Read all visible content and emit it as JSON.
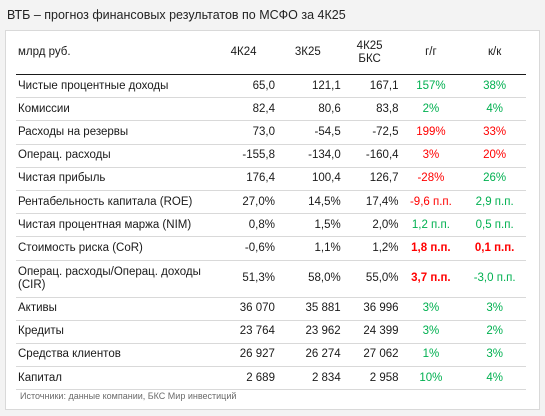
{
  "title": "ВТБ – прогноз финансовых результатов по МСФО за 4К25",
  "columns": [
    "млрд руб.",
    "4К24",
    "3К25",
    "4К25\nБКС",
    "г/г",
    "к/к"
  ],
  "colors": {
    "red": "#ff0000",
    "green": "#00b050",
    "darkred": "#ff0000"
  },
  "rows": [
    {
      "label": "Чистые процентные доходы",
      "v1": "65,0",
      "v2": "121,1",
      "v3": "167,1",
      "yoy": "157%",
      "qoq": "38%",
      "yoy_color": "green",
      "qoq_color": "green"
    },
    {
      "label": "Комиссии",
      "v1": "82,4",
      "v2": "80,6",
      "v3": "83,8",
      "yoy": "2%",
      "qoq": "4%",
      "yoy_color": "green",
      "qoq_color": "green"
    },
    {
      "label": "Расходы на резервы",
      "v1": "73,0",
      "v2": "-54,5",
      "v3": "-72,5",
      "yoy": "199%",
      "qoq": "33%",
      "yoy_color": "red",
      "qoq_color": "red"
    },
    {
      "label": "Операц. расходы",
      "v1": "-155,8",
      "v2": "-134,0",
      "v3": "-160,4",
      "yoy": "3%",
      "qoq": "20%",
      "yoy_color": "red",
      "qoq_color": "red"
    },
    {
      "label": "Чистая прибыль",
      "v1": "176,4",
      "v2": "100,4",
      "v3": "126,7",
      "yoy": "-28%",
      "qoq": "26%",
      "yoy_color": "red",
      "qoq_color": "green"
    },
    {
      "label": "Рентабельность капитала (ROE)",
      "v1": "27,0%",
      "v2": "14,5%",
      "v3": "17,4%",
      "yoy": "-9,6 п.п.",
      "qoq": "2,9 п.п.",
      "yoy_color": "red",
      "qoq_color": "green"
    },
    {
      "label": "Чистая процентная маржа (NIM)",
      "v1": "0,8%",
      "v2": "1,5%",
      "v3": "2,0%",
      "yoy": "1,2 п.п.",
      "qoq": "0,5 п.п.",
      "yoy_color": "green",
      "qoq_color": "green"
    },
    {
      "label": "Стоимость риска (CoR)",
      "v1": "-0,6%",
      "v2": "1,1%",
      "v3": "1,2%",
      "yoy": "1,8 п.п.",
      "qoq": "0,1 п.п.",
      "yoy_color": "red",
      "qoq_color": "red",
      "bold": true
    },
    {
      "label": "Операц. расходы/Операц. доходы (CIR)",
      "v1": "51,3%",
      "v2": "58,0%",
      "v3": "55,0%",
      "yoy": "3,7 п.п.",
      "qoq": "-3,0 п.п.",
      "yoy_color": "red",
      "qoq_color": "green",
      "tall": true,
      "bold_yoy": true
    },
    {
      "label": "Активы",
      "v1": "36 070",
      "v2": "35 881",
      "v3": "36 996",
      "yoy": "3%",
      "qoq": "3%",
      "yoy_color": "green",
      "qoq_color": "green"
    },
    {
      "label": "Кредиты",
      "v1": "23 764",
      "v2": "23 962",
      "v3": "24 399",
      "yoy": "3%",
      "qoq": "2%",
      "yoy_color": "green",
      "qoq_color": "green"
    },
    {
      "label": "Средства клиентов",
      "v1": "26 927",
      "v2": "26 274",
      "v3": "27 062",
      "yoy": "1%",
      "qoq": "3%",
      "yoy_color": "green",
      "qoq_color": "green"
    },
    {
      "label": "Капитал",
      "v1": "2 689",
      "v2": "2 834",
      "v3": "2 958",
      "yoy": "10%",
      "qoq": "4%",
      "yoy_color": "green",
      "qoq_color": "green"
    }
  ],
  "source": "Источники: данные компании, БКС Мир инвестиций"
}
